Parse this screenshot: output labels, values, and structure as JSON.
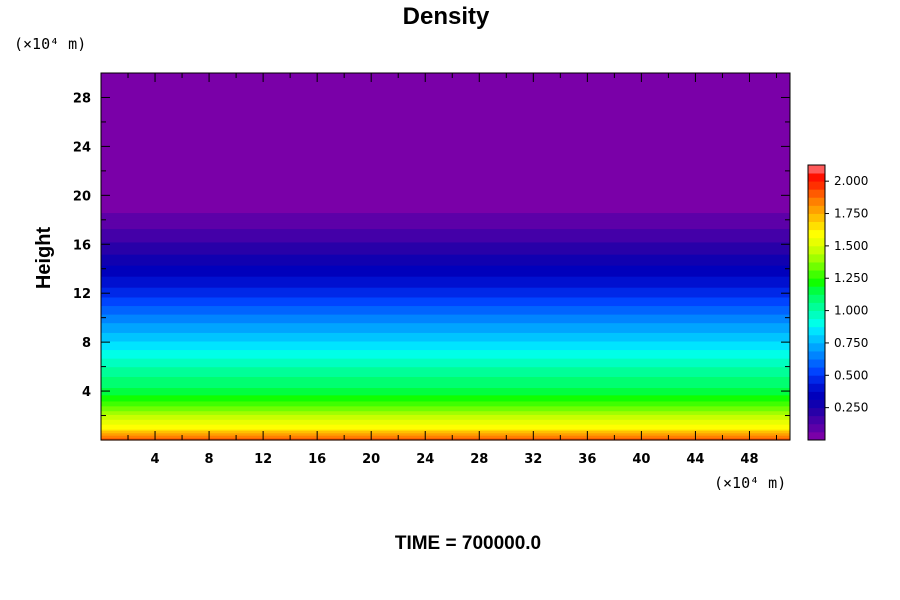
{
  "chart_data": {
    "type": "heatmap",
    "title": "Density",
    "ylabel": "Height",
    "xlabel": "",
    "x_unit": "(×10⁴ m)",
    "y_unit": "(×10⁴ m)",
    "xlim": [
      0,
      51
    ],
    "ylim": [
      0,
      30
    ],
    "x_ticks": [
      4,
      8,
      12,
      16,
      20,
      24,
      28,
      32,
      36,
      40,
      44,
      48
    ],
    "y_ticks": [
      4,
      8,
      12,
      16,
      20,
      24,
      28
    ],
    "grid": false,
    "colorbar": {
      "min": 0.0,
      "max": 2.125,
      "levels": 34,
      "tick_values": [
        0.25,
        0.5,
        0.75,
        1.0,
        1.25,
        1.5,
        1.75,
        2.0
      ],
      "tick_labels": [
        "0.250",
        "0.500",
        "0.750",
        "1.000",
        "1.250",
        "1.500",
        "1.750",
        "2.000"
      ],
      "colors": [
        "#7a00a8",
        "#5d00a8",
        "#4400a8",
        "#2800a8",
        "#1000b0",
        "#0000bc",
        "#0010d0",
        "#0028e8",
        "#0044ff",
        "#0064ff",
        "#0084ff",
        "#00a4ff",
        "#00c4ff",
        "#00e4ff",
        "#00ffe8",
        "#00ffc0",
        "#00ff98",
        "#00ff70",
        "#00ff40",
        "#10ff00",
        "#40ff00",
        "#70ff00",
        "#a0ff00",
        "#c8ff00",
        "#e8ff00",
        "#ffff00",
        "#ffe000",
        "#ffc000",
        "#ffa000",
        "#ff8000",
        "#ff5a00",
        "#ff3000",
        "#ff1000",
        "#ff5a5a"
      ]
    },
    "profile": {
      "description_units": "height in 10^4 m vs density",
      "height": [
        0,
        0.5,
        1,
        2,
        3,
        4,
        6,
        8,
        10,
        12,
        14,
        16,
        18,
        19.4,
        19.4,
        30
      ],
      "density": [
        1.95,
        1.78,
        1.6,
        1.45,
        1.28,
        1.15,
        1.0,
        0.82,
        0.65,
        0.47,
        0.33,
        0.2,
        0.08,
        0.04,
        0.0,
        0.0
      ]
    }
  },
  "footer": {
    "time_label": "TIME = 700000.0"
  }
}
